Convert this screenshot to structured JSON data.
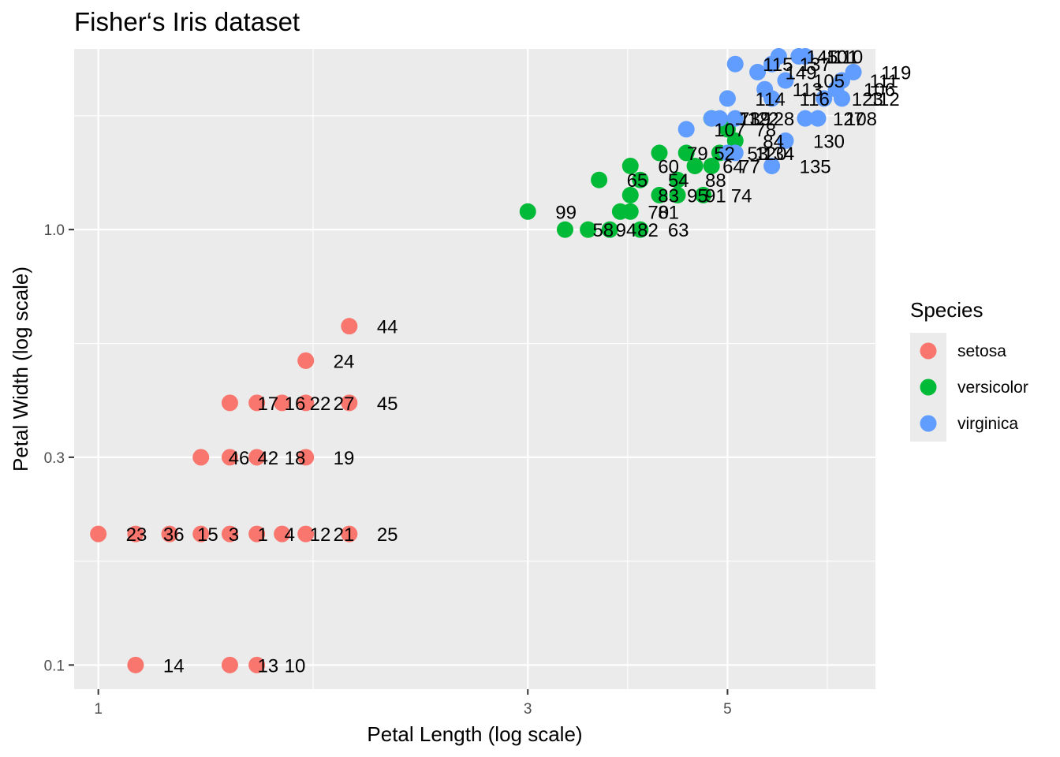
{
  "chart_data": {
    "type": "scatter",
    "title": "Fisher‘s Iris dataset",
    "xlabel": "Petal Length (log scale)",
    "ylabel": "Petal Width (log scale)",
    "x_scale": "log",
    "y_scale": "log",
    "xlim": [
      0.94,
      7.3
    ],
    "ylim": [
      0.088,
      2.6
    ],
    "x_ticks": [
      1,
      3,
      5
    ],
    "x_tick_labels": [
      "1",
      "3",
      "5"
    ],
    "y_ticks": [
      0.1,
      0.3,
      1.0
    ],
    "y_tick_labels": [
      "0.1",
      "0.3",
      "1.0"
    ],
    "grid": true,
    "legend": {
      "title": "Species",
      "placement": "right",
      "entries": [
        {
          "name": "setosa",
          "color": "#F8766D"
        },
        {
          "name": "versicolor",
          "color": "#00BA38"
        },
        {
          "name": "virginica",
          "color": "#619CFF"
        }
      ]
    },
    "series": [
      {
        "name": "setosa",
        "color": "#F8766D",
        "points": [
          {
            "x": 1.9,
            "y": 0.6,
            "label": "44"
          },
          {
            "x": 1.7,
            "y": 0.5,
            "label": "24"
          },
          {
            "x": 1.4,
            "y": 0.4,
            "label": "17"
          },
          {
            "x": 1.5,
            "y": 0.4,
            "label": "16"
          },
          {
            "x": 1.6,
            "y": 0.4,
            "label": "22"
          },
          {
            "x": 1.7,
            "y": 0.4,
            "label": "27"
          },
          {
            "x": 1.9,
            "y": 0.4,
            "label": "45"
          },
          {
            "x": 1.4,
            "y": 0.3,
            "label": "42"
          },
          {
            "x": 1.3,
            "y": 0.3,
            "label": "46"
          },
          {
            "x": 1.5,
            "y": 0.3,
            "label": "18"
          },
          {
            "x": 1.7,
            "y": 0.3,
            "label": "19"
          },
          {
            "x": 1.0,
            "y": 0.2,
            "label": "23"
          },
          {
            "x": 1.1,
            "y": 0.2,
            "label": "36"
          },
          {
            "x": 1.2,
            "y": 0.2,
            "label": "15"
          },
          {
            "x": 1.3,
            "y": 0.2,
            "label": "3"
          },
          {
            "x": 1.4,
            "y": 0.2,
            "label": "1"
          },
          {
            "x": 1.5,
            "y": 0.2,
            "label": "4"
          },
          {
            "x": 1.6,
            "y": 0.2,
            "label": "12"
          },
          {
            "x": 1.7,
            "y": 0.2,
            "label": "21"
          },
          {
            "x": 1.9,
            "y": 0.2,
            "label": "25"
          },
          {
            "x": 1.1,
            "y": 0.1,
            "label": "14"
          },
          {
            "x": 1.4,
            "y": 0.1,
            "label": "13"
          },
          {
            "x": 1.5,
            "y": 0.1,
            "label": "10"
          }
        ]
      },
      {
        "name": "versicolor",
        "color": "#00BA38",
        "points": [
          {
            "x": 3.0,
            "y": 1.1,
            "label": "99"
          },
          {
            "x": 3.3,
            "y": 1.0,
            "label": "58"
          },
          {
            "x": 3.5,
            "y": 1.0,
            "label": "94"
          },
          {
            "x": 3.7,
            "y": 1.0,
            "label": "82"
          },
          {
            "x": 3.8,
            "y": 1.1,
            "label": "70"
          },
          {
            "x": 4.0,
            "y": 1.0,
            "label": "63"
          },
          {
            "x": 3.9,
            "y": 1.1,
            "label": "81"
          },
          {
            "x": 3.9,
            "y": 1.2,
            "label": "83"
          },
          {
            "x": 3.6,
            "y": 1.3,
            "label": "65"
          },
          {
            "x": 3.9,
            "y": 1.4,
            "label": "60"
          },
          {
            "x": 4.2,
            "y": 1.2,
            "label": "95"
          },
          {
            "x": 4.4,
            "y": 1.2,
            "label": "91"
          },
          {
            "x": 4.7,
            "y": 1.2,
            "label": "74"
          },
          {
            "x": 4.0,
            "y": 1.3,
            "label": "54"
          },
          {
            "x": 4.4,
            "y": 1.3,
            "label": "88"
          },
          {
            "x": 4.6,
            "y": 1.4,
            "label": "64"
          },
          {
            "x": 4.2,
            "y": 1.5,
            "label": "79"
          },
          {
            "x": 4.5,
            "y": 1.5,
            "label": "52"
          },
          {
            "x": 4.8,
            "y": 1.8,
            "label": "71"
          },
          {
            "x": 4.8,
            "y": 1.4,
            "label": "77"
          },
          {
            "x": 4.9,
            "y": 1.5,
            "label": "53"
          },
          {
            "x": 5.0,
            "y": 1.7,
            "label": "78"
          },
          {
            "x": 5.1,
            "y": 1.6,
            "label": "84"
          }
        ]
      },
      {
        "name": "virginica",
        "color": "#619CFF",
        "points": [
          {
            "x": 4.5,
            "y": 1.7,
            "label": "107"
          },
          {
            "x": 5.0,
            "y": 1.5,
            "label": "120"
          },
          {
            "x": 5.1,
            "y": 1.5,
            "label": "134"
          },
          {
            "x": 5.6,
            "y": 1.4,
            "label": "135"
          },
          {
            "x": 5.8,
            "y": 1.6,
            "label": "130"
          },
          {
            "x": 4.9,
            "y": 1.8,
            "label": "122"
          },
          {
            "x": 5.1,
            "y": 1.8,
            "label": "128"
          },
          {
            "x": 6.3,
            "y": 1.8,
            "label": "108"
          },
          {
            "x": 6.1,
            "y": 1.8,
            "label": "127"
          },
          {
            "x": 4.8,
            "y": 1.8,
            "label": "139"
          },
          {
            "x": 5.0,
            "y": 2.0,
            "label": "114"
          },
          {
            "x": 5.6,
            "y": 2.0,
            "label": "116"
          },
          {
            "x": 6.4,
            "y": 2.0,
            "label": "123"
          },
          {
            "x": 6.7,
            "y": 2.0,
            "label": "112"
          },
          {
            "x": 5.5,
            "y": 2.1,
            "label": "113"
          },
          {
            "x": 6.6,
            "y": 2.1,
            "label": "106"
          },
          {
            "x": 5.8,
            "y": 2.2,
            "label": "105"
          },
          {
            "x": 6.7,
            "y": 2.2,
            "label": "111"
          },
          {
            "x": 6.9,
            "y": 2.3,
            "label": "119"
          },
          {
            "x": 5.1,
            "y": 2.4,
            "label": "115"
          },
          {
            "x": 5.6,
            "y": 2.4,
            "label": "137"
          },
          {
            "x": 6.1,
            "y": 2.5,
            "label": "110"
          },
          {
            "x": 6.0,
            "y": 2.5,
            "label": "101"
          },
          {
            "x": 5.7,
            "y": 2.5,
            "label": "145"
          },
          {
            "x": 5.4,
            "y": 2.3,
            "label": "149"
          }
        ]
      }
    ]
  }
}
